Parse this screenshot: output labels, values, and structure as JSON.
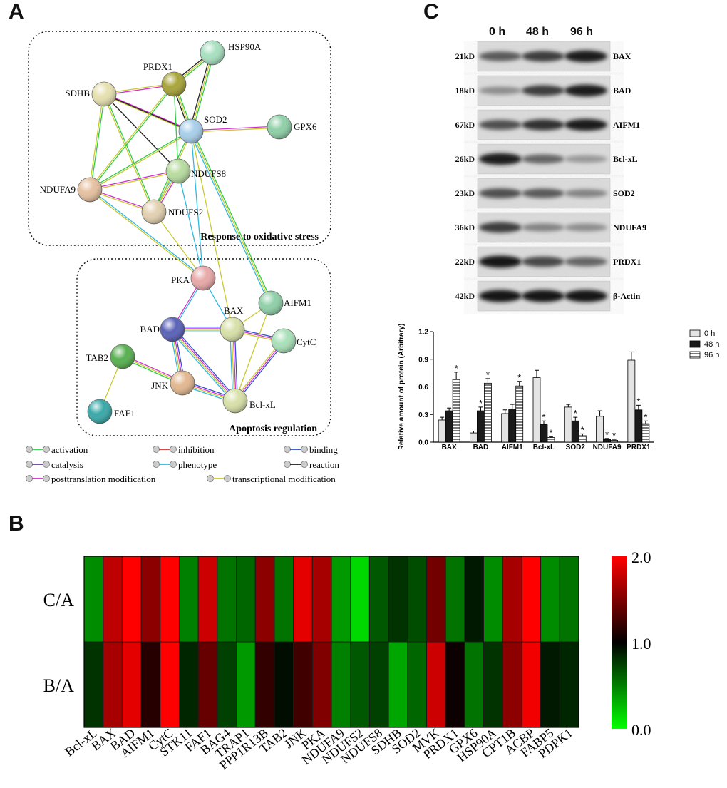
{
  "panels": {
    "a": "A",
    "b": "B",
    "c": "C"
  },
  "network": {
    "group_oxidative": "Response to oxidative stress",
    "group_apoptosis": "Apoptosis regulation",
    "nodes": [
      {
        "id": "HSP90A",
        "label": "HSP90A",
        "color": "#a8e0c0"
      },
      {
        "id": "PRDX1",
        "label": "PRDX1",
        "color": "#a8a43a"
      },
      {
        "id": "SDHB",
        "label": "SDHB",
        "color": "#e6e0b0"
      },
      {
        "id": "SOD2",
        "label": "SOD2",
        "color": "#a8cfea"
      },
      {
        "id": "GPX6",
        "label": "GPX6",
        "color": "#8fd0a8"
      },
      {
        "id": "NDUFS8",
        "label": "NDUFS8",
        "color": "#b8dca0"
      },
      {
        "id": "NDUFA9",
        "label": "NDUFA9",
        "color": "#e6c0a0"
      },
      {
        "id": "NDUFS2",
        "label": "NDUFS2",
        "color": "#e2d0b0"
      },
      {
        "id": "PKA",
        "label": "PKA",
        "color": "#e8a8a8"
      },
      {
        "id": "AIFM1",
        "label": "AIFM1",
        "color": "#8fd0a8"
      },
      {
        "id": "BAX",
        "label": "BAX",
        "color": "#d8e0a8"
      },
      {
        "id": "BAD",
        "label": "BAD",
        "color": "#5a62b8"
      },
      {
        "id": "CytC",
        "label": "CytC",
        "color": "#a8e0b8"
      },
      {
        "id": "TAB2",
        "label": "TAB2",
        "color": "#58b050"
      },
      {
        "id": "JNK",
        "label": "JNK",
        "color": "#e2b890"
      },
      {
        "id": "Bcl-xL",
        "label": "Bcl-xL",
        "color": "#d8e0a8"
      },
      {
        "id": "FAF1",
        "label": "FAF1",
        "color": "#3aa8a8"
      }
    ],
    "legend": [
      {
        "label": "activation",
        "color": "#2ecc40"
      },
      {
        "label": "inhibition",
        "color": "#e03030"
      },
      {
        "label": "binding",
        "color": "#3050d0"
      },
      {
        "label": "catalysis",
        "color": "#6040a0"
      },
      {
        "label": "phenotype",
        "color": "#30b8e0"
      },
      {
        "label": "reaction",
        "color": "#222222"
      },
      {
        "label": "posttranslation modification",
        "color": "#d030d0"
      },
      {
        "label": "transcriptional modification",
        "color": "#c8c830"
      }
    ]
  },
  "blot": {
    "times": [
      "0 h",
      "48 h",
      "96 h"
    ],
    "rows": [
      {
        "kd": "21kD",
        "protein": "BAX"
      },
      {
        "kd": "18kD",
        "protein": "BAD"
      },
      {
        "kd": "67kD",
        "protein": "AIFM1"
      },
      {
        "kd": "26kD",
        "protein": "Bcl-xL"
      },
      {
        "kd": "23kD",
        "protein": "SOD2"
      },
      {
        "kd": "36kD",
        "protein": "NDUFA9"
      },
      {
        "kd": "22kD",
        "protein": "PRDX1"
      },
      {
        "kd": "42kD",
        "protein": "β-Actin"
      }
    ]
  },
  "chart_data": [
    {
      "type": "bar",
      "ylabel": "Relative amount of protein (Arbitrary)",
      "ylim": [
        0,
        1.2
      ],
      "yticks": [
        "0.0",
        "0.3",
        "0.6",
        "0.9",
        "1.2"
      ],
      "categories": [
        "BAX",
        "BAD",
        "AIFM1",
        "Bcl-xL",
        "SOD2",
        "NDUFA9",
        "PRDX1"
      ],
      "series": [
        {
          "name": "0 h",
          "values": [
            0.24,
            0.1,
            0.31,
            0.7,
            0.38,
            0.28,
            0.89
          ],
          "errors": [
            0.03,
            0.02,
            0.04,
            0.08,
            0.03,
            0.06,
            0.09
          ]
        },
        {
          "name": "48 h",
          "values": [
            0.34,
            0.34,
            0.36,
            0.19,
            0.23,
            0.03,
            0.35
          ],
          "errors": [
            0.03,
            0.04,
            0.05,
            0.04,
            0.04,
            0.01,
            0.05
          ]
        },
        {
          "name": "96 h",
          "values": [
            0.68,
            0.64,
            0.61,
            0.05,
            0.07,
            0.02,
            0.2
          ],
          "errors": [
            0.08,
            0.05,
            0.05,
            0.01,
            0.02,
            0.01,
            0.03
          ]
        }
      ],
      "significance": [
        [
          false,
          false,
          true
        ],
        [
          false,
          true,
          true
        ],
        [
          false,
          false,
          true
        ],
        [
          false,
          true,
          true
        ],
        [
          false,
          true,
          true
        ],
        [
          false,
          true,
          true
        ],
        [
          false,
          true,
          true
        ]
      ],
      "significance_mark": "*",
      "legend_position": "top-right"
    },
    {
      "type": "heatmap",
      "rows": [
        "C/A",
        "B/A"
      ],
      "columns": [
        "Bcl-xL",
        "BAX",
        "BAD",
        "AIFM1",
        "CytC",
        "STK11",
        "FAF1",
        "BAG4",
        "TRAP1",
        "PPP1R13B",
        "TAB2",
        "JNK",
        "PKA",
        "NDUFA9",
        "NDUFS2",
        "NDUFS8",
        "SDHB",
        "SOD2",
        "MVK",
        "PRDX1",
        "GPX6",
        "HSP90A",
        "CPT1B",
        "ACBP",
        "FABP5",
        "PDPK1"
      ],
      "values": [
        [
          0.45,
          1.75,
          2.0,
          1.55,
          2.0,
          0.5,
          1.8,
          0.55,
          0.6,
          1.55,
          0.55,
          1.9,
          1.65,
          0.4,
          0.15,
          0.65,
          0.8,
          0.7,
          1.45,
          0.55,
          0.9,
          0.45,
          1.65,
          2.0,
          0.45,
          0.55
        ],
        [
          0.8,
          1.65,
          1.9,
          1.15,
          2.0,
          0.85,
          1.4,
          0.75,
          0.4,
          1.2,
          0.95,
          1.25,
          1.5,
          0.5,
          0.65,
          0.75,
          0.35,
          0.6,
          1.8,
          1.05,
          0.55,
          0.8,
          1.55,
          1.95,
          0.9,
          0.85
        ]
      ],
      "colorbar": {
        "ticks": [
          "2.0",
          "1.0",
          "0.0"
        ],
        "range": [
          0,
          2
        ],
        "colors": [
          "#00ff00",
          "#000000",
          "#ff0000"
        ]
      }
    }
  ]
}
